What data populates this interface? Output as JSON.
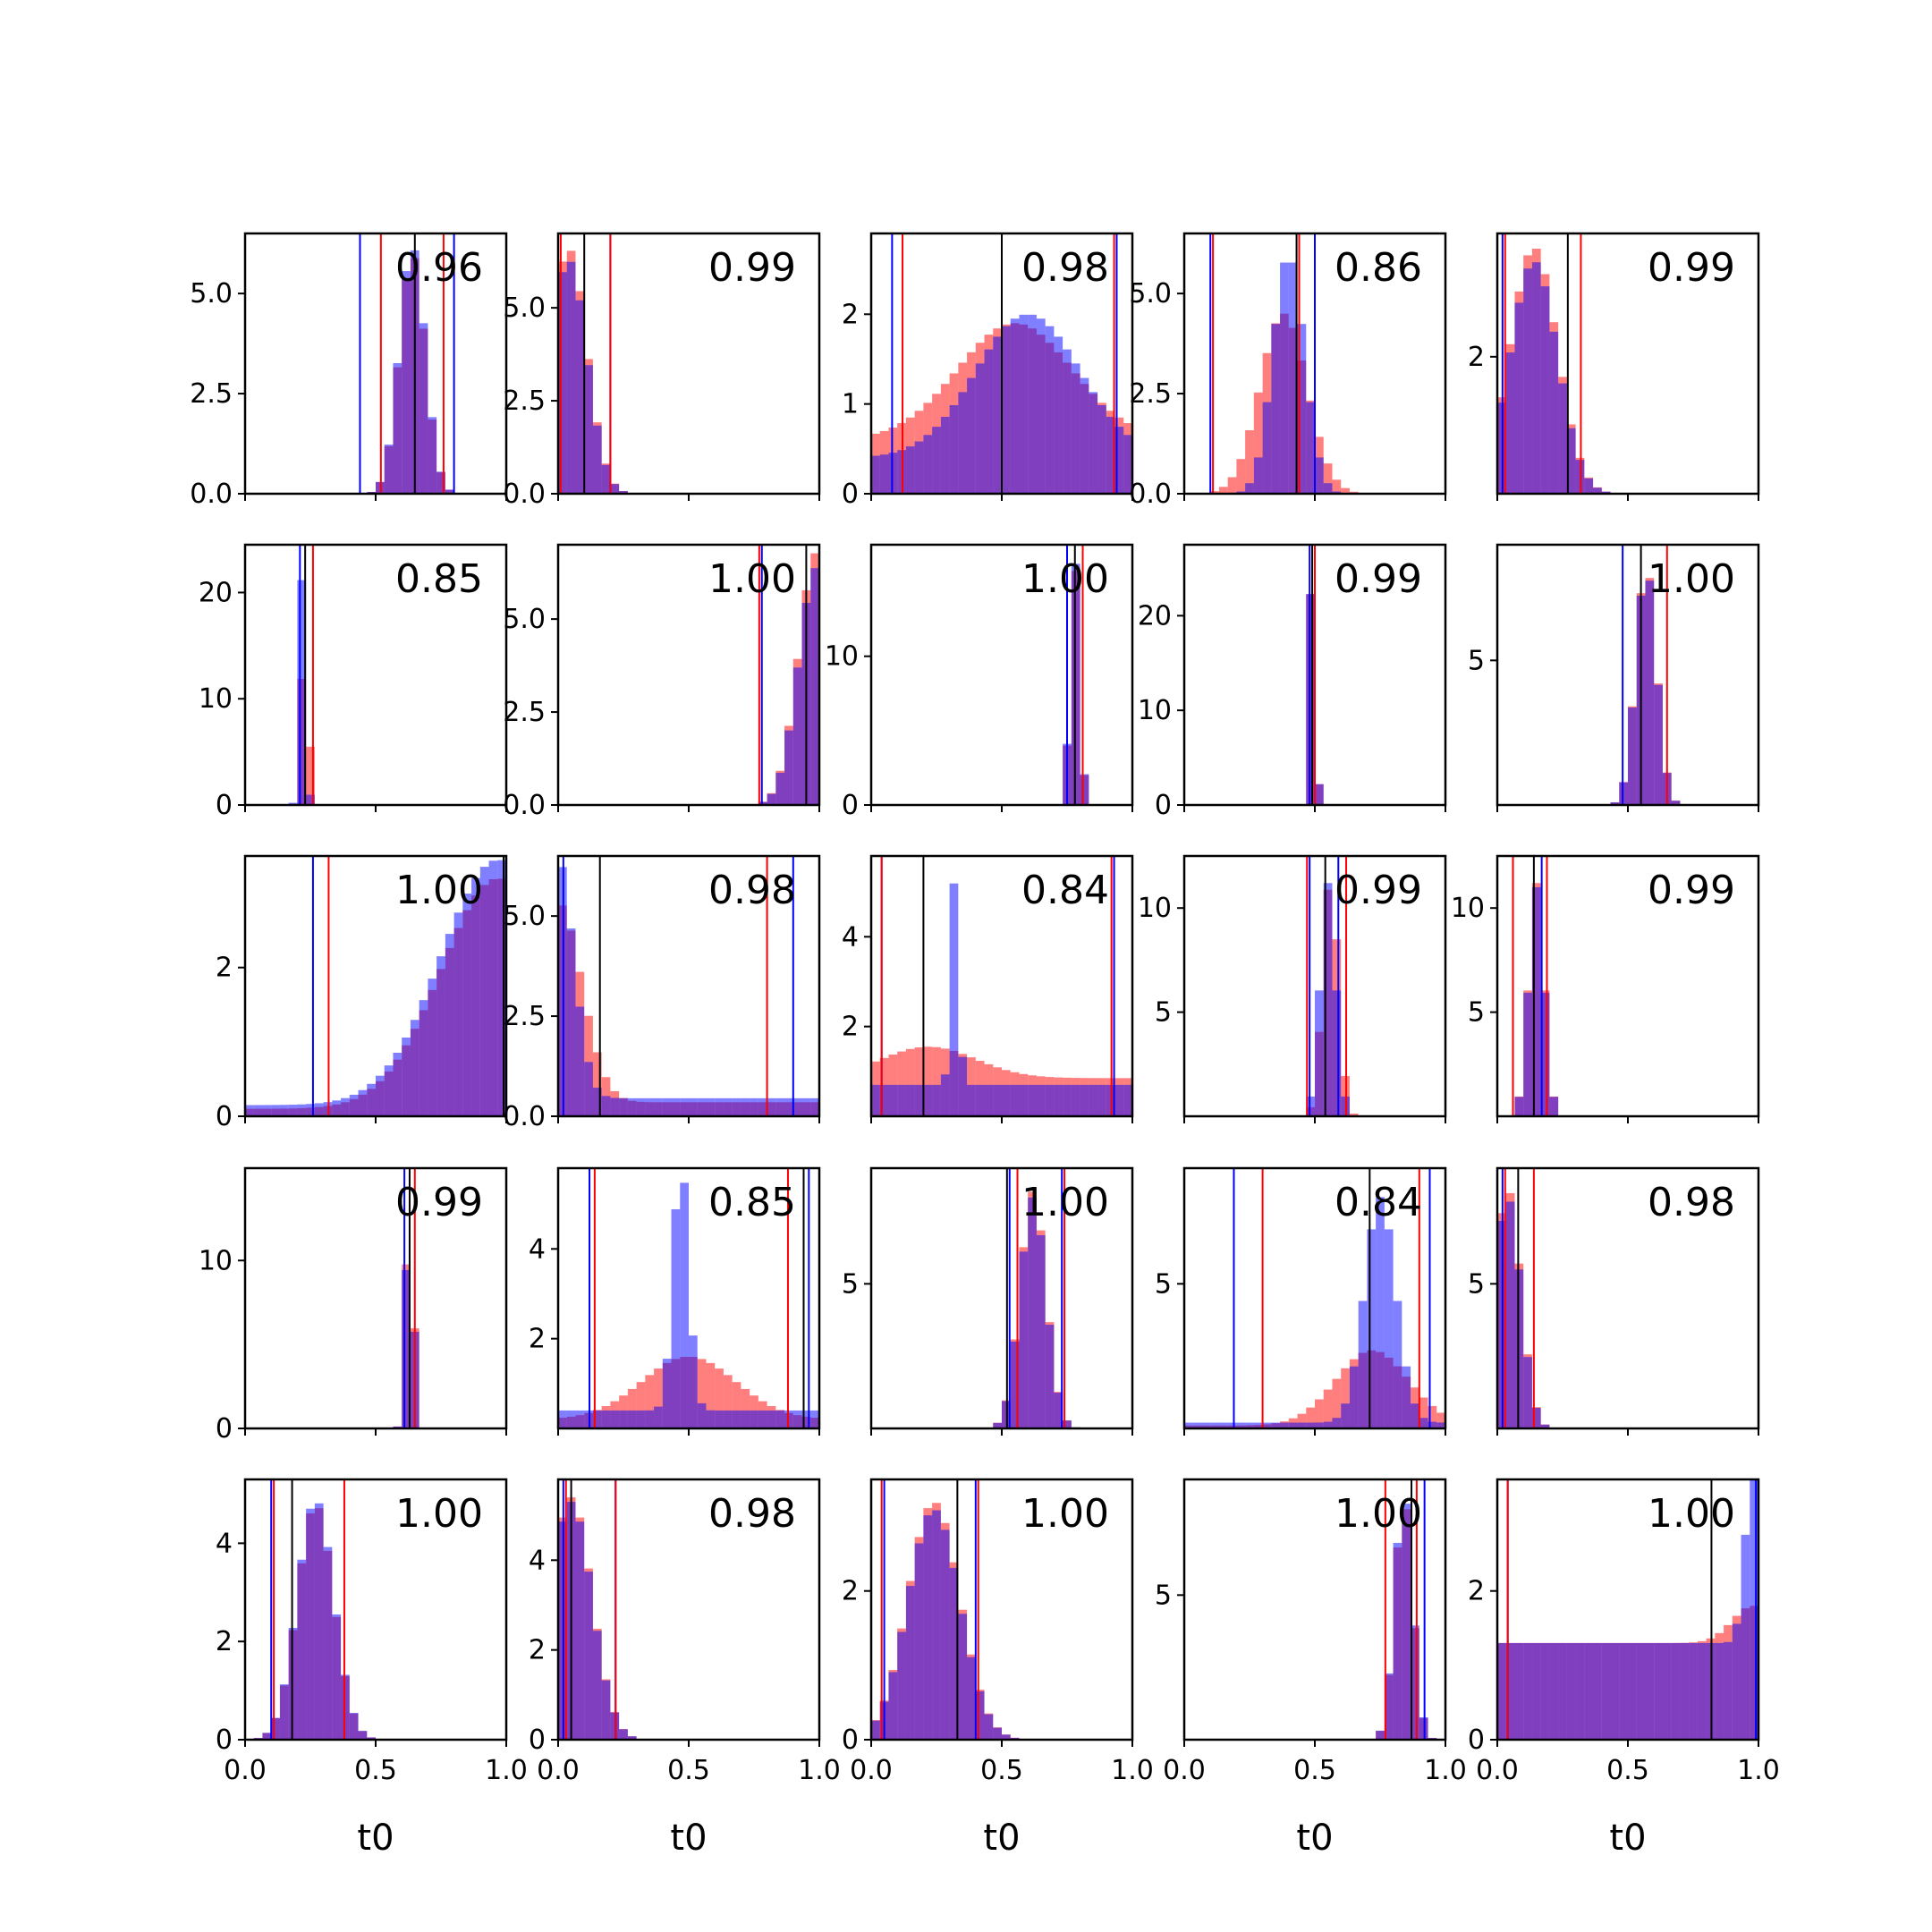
{
  "figure": {
    "xlabel": "t0"
  },
  "colors": {
    "red": "#ff0000",
    "blue": "#0000ff",
    "red_fill": "rgba(255,0,0,0.5)",
    "blue_fill": "rgba(0,0,255,0.5)",
    "black": "#000000"
  },
  "chart_data": [
    {
      "type": "bar",
      "score": "0.96",
      "x_range": [
        0,
        1
      ],
      "y_range": [
        0,
        6.5
      ],
      "y_ticks": [
        "0.0",
        "2.5",
        "5.0"
      ],
      "y_tick_values": [
        0,
        2.5,
        5.0
      ],
      "peaks": [
        {
          "mean": 0.64,
          "sd": 0.05,
          "height": 6.0,
          "color": "red"
        },
        {
          "mean": 0.64,
          "sd": 0.05,
          "height": 6.2,
          "color": "blue"
        }
      ],
      "vlines": {
        "blue": [
          0.44,
          0.8
        ],
        "red": [
          0.52,
          0.76
        ],
        "black": [
          0.65
        ]
      }
    },
    {
      "type": "bar",
      "score": "0.99",
      "x_range": [
        0,
        1
      ],
      "y_range": [
        0,
        7.0
      ],
      "y_ticks": [
        "0.0",
        "2.5",
        "5.0"
      ],
      "y_tick_values": [
        0,
        2.5,
        5.0
      ],
      "peaks": [
        {
          "mean": 0.04,
          "sd": 0.07,
          "height": 6.6,
          "color": "red"
        },
        {
          "mean": 0.04,
          "sd": 0.07,
          "height": 6.3,
          "color": "blue"
        }
      ],
      "vlines": {
        "blue": [
          0.2
        ],
        "red": [
          0.01,
          0.2
        ],
        "black": [
          0.1
        ]
      }
    },
    {
      "type": "bar",
      "score": "0.98",
      "x_range": [
        0,
        1
      ],
      "y_range": [
        0,
        2.9
      ],
      "y_ticks": [
        "0",
        "1",
        "2"
      ],
      "y_tick_values": [
        0,
        1,
        2
      ],
      "peaks": [
        {
          "mean": 0.55,
          "sd": 0.22,
          "height": 1.3,
          "color": "red",
          "base": 0.6
        },
        {
          "mean": 0.6,
          "sd": 0.2,
          "height": 1.6,
          "color": "blue",
          "base": 0.4
        }
      ],
      "vlines": {
        "blue": [
          0.08,
          0.94
        ],
        "red": [
          0.12,
          0.93
        ],
        "black": [
          0.5
        ]
      }
    },
    {
      "type": "bar",
      "score": "0.86",
      "x_range": [
        0,
        1
      ],
      "y_range": [
        0,
        6.5
      ],
      "y_ticks": [
        "0.0",
        "2.5",
        "5.0"
      ],
      "y_tick_values": [
        0,
        2.5,
        5.0
      ],
      "peaks": [
        {
          "mean": 0.38,
          "sd": 0.09,
          "height": 4.5,
          "color": "red"
        },
        {
          "mean": 0.4,
          "sd": 0.06,
          "height": 6.0,
          "color": "blue"
        }
      ],
      "vlines": {
        "blue": [
          0.1,
          0.5
        ],
        "red": [
          0.11,
          0.44
        ],
        "black": [
          0.43
        ]
      }
    },
    {
      "type": "bar",
      "score": "0.99",
      "x_range": [
        0,
        1
      ],
      "y_range": [
        0,
        3.8
      ],
      "y_ticks": [
        "2"
      ],
      "y_tick_values": [
        2
      ],
      "peaks": [
        {
          "mean": 0.14,
          "sd": 0.09,
          "height": 3.6,
          "color": "red"
        },
        {
          "mean": 0.14,
          "sd": 0.09,
          "height": 3.4,
          "color": "blue"
        }
      ],
      "vlines": {
        "blue": [
          0.02
        ],
        "red": [
          0.03,
          0.32
        ],
        "black": [
          0.27
        ]
      }
    },
    {
      "type": "bar",
      "score": "0.85",
      "x_range": [
        0,
        1
      ],
      "y_range": [
        0,
        24.5
      ],
      "y_ticks": [
        "0",
        "10",
        "20"
      ],
      "y_tick_values": [
        0,
        10,
        20
      ],
      "peaks": [
        {
          "mean": 0.23,
          "sd": 0.012,
          "height": 22,
          "color": "red"
        },
        {
          "mean": 0.22,
          "sd": 0.012,
          "height": 22,
          "color": "blue"
        }
      ],
      "vlines": {
        "blue": [
          0.21
        ],
        "red": [
          0.26
        ],
        "black": [
          0.23
        ]
      }
    },
    {
      "type": "bar",
      "score": "1.00",
      "x_range": [
        0,
        1
      ],
      "y_range": [
        0,
        7.0
      ],
      "y_ticks": [
        "0.0",
        "2.5",
        "5.0"
      ],
      "y_tick_values": [
        0,
        2.5,
        5.0
      ],
      "peaks": [
        {
          "mean": 0.99,
          "sd": 0.07,
          "height": 6.8,
          "color": "red"
        },
        {
          "mean": 0.99,
          "sd": 0.07,
          "height": 6.4,
          "color": "blue"
        }
      ],
      "vlines": {
        "blue": [
          0.78
        ],
        "red": [
          0.77
        ],
        "black": [
          0.95
        ]
      }
    },
    {
      "type": "bar",
      "score": "1.00",
      "x_range": [
        0,
        1
      ],
      "y_range": [
        0,
        17.5
      ],
      "y_ticks": [
        "0",
        "10"
      ],
      "y_tick_values": [
        0,
        10
      ],
      "peaks": [
        {
          "mean": 0.78,
          "sd": 0.018,
          "height": 16,
          "color": "red"
        },
        {
          "mean": 0.78,
          "sd": 0.018,
          "height": 16.5,
          "color": "blue"
        }
      ],
      "vlines": {
        "blue": [
          0.75
        ],
        "red": [
          0.81
        ],
        "black": [
          0.78
        ]
      }
    },
    {
      "type": "bar",
      "score": "0.99",
      "x_range": [
        0,
        1
      ],
      "y_range": [
        0,
        27.5
      ],
      "y_ticks": [
        "0",
        "10",
        "20"
      ],
      "y_tick_values": [
        0,
        10,
        20
      ],
      "peaks": [
        {
          "mean": 0.49,
          "sd": 0.012,
          "height": 26,
          "color": "red"
        },
        {
          "mean": 0.49,
          "sd": 0.012,
          "height": 26,
          "color": "blue"
        }
      ],
      "vlines": {
        "blue": [
          0.48
        ],
        "red": [
          0.5
        ],
        "black": [
          0.49
        ]
      }
    },
    {
      "type": "bar",
      "score": "1.00",
      "x_range": [
        0,
        1
      ],
      "y_range": [
        0,
        9.0
      ],
      "y_ticks": [
        "5"
      ],
      "y_tick_values": [
        5
      ],
      "peaks": [
        {
          "mean": 0.57,
          "sd": 0.04,
          "height": 8.3,
          "color": "red"
        },
        {
          "mean": 0.57,
          "sd": 0.04,
          "height": 8.2,
          "color": "blue"
        }
      ],
      "vlines": {
        "blue": [
          0.48
        ],
        "red": [
          0.65
        ],
        "black": [
          0.55
        ]
      }
    },
    {
      "type": "bar",
      "score": "1.00",
      "x_range": [
        0,
        1
      ],
      "y_range": [
        0,
        3.5
      ],
      "y_ticks": [
        "0",
        "2"
      ],
      "y_tick_values": [
        0,
        2
      ],
      "peaks": [
        {
          "mean": 0.97,
          "sd": 0.22,
          "height": 3.1,
          "color": "red",
          "base": 0.1
        },
        {
          "mean": 0.97,
          "sd": 0.22,
          "height": 3.3,
          "color": "blue",
          "base": 0.15
        }
      ],
      "vlines": {
        "blue": [
          0.26,
          0.99
        ],
        "red": [
          0.32
        ],
        "black": [
          0.99
        ]
      }
    },
    {
      "type": "bar",
      "score": "0.98",
      "x_range": [
        0,
        1
      ],
      "y_range": [
        0,
        6.5
      ],
      "y_ticks": [
        "0.0",
        "2.5",
        "5.0"
      ],
      "y_tick_values": [
        0,
        2.5,
        5.0
      ],
      "peaks": [
        {
          "mean": 0.0,
          "sd": 0.09,
          "height": 5.0,
          "color": "red",
          "base": 0.35
        },
        {
          "mean": 0.0,
          "sd": 0.06,
          "height": 6.0,
          "color": "blue",
          "base": 0.45
        }
      ],
      "vlines": {
        "blue": [
          0.02,
          0.9
        ],
        "red": [
          0.8
        ],
        "black": [
          0.16
        ]
      }
    },
    {
      "type": "bar",
      "score": "0.84",
      "x_range": [
        0,
        1
      ],
      "y_range": [
        0,
        5.8
      ],
      "y_ticks": [
        "2",
        "4"
      ],
      "y_tick_values": [
        2,
        4
      ],
      "peaks": [
        {
          "mean": 0.22,
          "sd": 0.18,
          "height": 0.7,
          "color": "red",
          "base": 0.85
        },
        {
          "mean": 0.32,
          "sd": 0.015,
          "height": 4.6,
          "color": "blue",
          "base": 0.7
        }
      ],
      "vlines": {
        "blue": [
          0.04,
          0.93
        ],
        "red": [
          0.04,
          0.92
        ],
        "black": [
          0.2
        ]
      }
    },
    {
      "type": "bar",
      "score": "0.99",
      "x_range": [
        0,
        1
      ],
      "y_range": [
        0,
        12.5
      ],
      "y_ticks": [
        "5",
        "10"
      ],
      "y_tick_values": [
        5,
        10
      ],
      "peaks": [
        {
          "mean": 0.56,
          "sd": 0.03,
          "height": 11.5,
          "color": "red"
        },
        {
          "mean": 0.55,
          "sd": 0.03,
          "height": 11.2,
          "color": "blue"
        }
      ],
      "vlines": {
        "blue": [
          0.48,
          0.59
        ],
        "red": [
          0.47,
          0.62
        ],
        "black": [
          0.54
        ]
      }
    },
    {
      "type": "bar",
      "score": "0.99",
      "x_range": [
        0,
        1
      ],
      "y_range": [
        0,
        12.5
      ],
      "y_ticks": [
        "5",
        "10"
      ],
      "y_tick_values": [
        5,
        10
      ],
      "peaks": [
        {
          "mean": 0.15,
          "sd": 0.03,
          "height": 11.2,
          "color": "red"
        },
        {
          "mean": 0.15,
          "sd": 0.03,
          "height": 11.0,
          "color": "blue"
        }
      ],
      "vlines": {
        "blue": [
          0.06,
          0.17
        ],
        "red": [
          0.06,
          0.19
        ],
        "black": [
          0.14
        ]
      }
    },
    {
      "type": "bar",
      "score": "0.99",
      "x_range": [
        0,
        1
      ],
      "y_range": [
        0,
        15.5
      ],
      "y_ticks": [
        "0",
        "10"
      ],
      "y_tick_values": [
        0,
        10
      ],
      "peaks": [
        {
          "mean": 0.63,
          "sd": 0.015,
          "height": 14.5,
          "color": "red"
        },
        {
          "mean": 0.63,
          "sd": 0.015,
          "height": 14.0,
          "color": "blue"
        }
      ],
      "vlines": {
        "blue": [
          0.61
        ],
        "red": [
          0.65
        ],
        "black": [
          0.63
        ]
      }
    },
    {
      "type": "bar",
      "score": "0.85",
      "x_range": [
        0,
        1
      ],
      "y_range": [
        0,
        5.8
      ],
      "y_ticks": [
        "2",
        "4"
      ],
      "y_tick_values": [
        2,
        4
      ],
      "peaks": [
        {
          "mean": 0.5,
          "sd": 0.18,
          "height": 1.4,
          "color": "red",
          "base": 0.2
        },
        {
          "mean": 0.47,
          "sd": 0.03,
          "height": 5.6,
          "color": "blue",
          "base": 0.4
        }
      ],
      "vlines": {
        "blue": [
          0.12,
          0.96
        ],
        "red": [
          0.14,
          0.88
        ],
        "black": [
          0.94
        ]
      }
    },
    {
      "type": "bar",
      "score": "1.00",
      "x_range": [
        0,
        1
      ],
      "y_range": [
        0,
        9.0
      ],
      "y_ticks": [
        "5"
      ],
      "y_tick_values": [
        5
      ],
      "peaks": [
        {
          "mean": 0.62,
          "sd": 0.05,
          "height": 8.2,
          "color": "red"
        },
        {
          "mean": 0.62,
          "sd": 0.05,
          "height": 8.0,
          "color": "blue"
        }
      ],
      "vlines": {
        "blue": [
          0.53,
          0.73
        ],
        "red": [
          0.56,
          0.74
        ],
        "black": [
          0.52
        ]
      }
    },
    {
      "type": "bar",
      "score": "0.84",
      "x_range": [
        0,
        1
      ],
      "y_range": [
        0,
        9.0
      ],
      "y_ticks": [
        "5"
      ],
      "y_tick_values": [
        5
      ],
      "peaks": [
        {
          "mean": 0.72,
          "sd": 0.14,
          "height": 2.6,
          "color": "red",
          "base": 0.1
        },
        {
          "mean": 0.75,
          "sd": 0.06,
          "height": 7.8,
          "color": "blue",
          "base": 0.2
        }
      ],
      "vlines": {
        "blue": [
          0.19,
          0.94
        ],
        "red": [
          0.3,
          0.9
        ],
        "black": [
          0.71
        ]
      }
    },
    {
      "type": "bar",
      "score": "0.98",
      "x_range": [
        0,
        1
      ],
      "y_range": [
        0,
        9.0
      ],
      "y_ticks": [
        "5"
      ],
      "y_tick_values": [
        5
      ],
      "peaks": [
        {
          "mean": 0.04,
          "sd": 0.05,
          "height": 8.3,
          "color": "red"
        },
        {
          "mean": 0.04,
          "sd": 0.05,
          "height": 8.0,
          "color": "blue"
        }
      ],
      "vlines": {
        "blue": [
          0.02
        ],
        "red": [
          0.03,
          0.14
        ],
        "black": [
          0.08
        ]
      }
    },
    {
      "type": "bar",
      "score": "1.00",
      "x_range": [
        0,
        1
      ],
      "y_range": [
        0,
        5.3
      ],
      "y_ticks": [
        "0",
        "2",
        "4"
      ],
      "y_tick_values": [
        0,
        2,
        4
      ],
      "peaks": [
        {
          "mean": 0.27,
          "sd": 0.07,
          "height": 4.8,
          "color": "red"
        },
        {
          "mean": 0.27,
          "sd": 0.07,
          "height": 4.9,
          "color": "blue"
        }
      ],
      "vlines": {
        "blue": [
          0.1
        ],
        "red": [
          0.11,
          0.38
        ],
        "black": [
          0.18
        ]
      }
    },
    {
      "type": "bar",
      "score": "0.98",
      "x_range": [
        0,
        1
      ],
      "y_range": [
        0,
        5.8
      ],
      "y_ticks": [
        "0",
        "2",
        "4"
      ],
      "y_tick_values": [
        0,
        2,
        4
      ],
      "peaks": [
        {
          "mean": 0.05,
          "sd": 0.08,
          "height": 5.4,
          "color": "red"
        },
        {
          "mean": 0.05,
          "sd": 0.08,
          "height": 5.3,
          "color": "blue"
        }
      ],
      "vlines": {
        "blue": [
          0.02,
          0.22
        ],
        "red": [
          0.03,
          0.22
        ],
        "black": [
          0.05
        ]
      }
    },
    {
      "type": "bar",
      "score": "1.00",
      "x_range": [
        0,
        1
      ],
      "y_range": [
        0,
        3.5
      ],
      "y_ticks": [
        "0",
        "2"
      ],
      "y_tick_values": [
        0,
        2
      ],
      "peaks": [
        {
          "mean": 0.24,
          "sd": 0.1,
          "height": 3.2,
          "color": "red"
        },
        {
          "mean": 0.24,
          "sd": 0.1,
          "height": 3.1,
          "color": "blue"
        }
      ],
      "vlines": {
        "blue": [
          0.05,
          0.4
        ],
        "red": [
          0.04,
          0.41
        ],
        "black": [
          0.33
        ]
      }
    },
    {
      "type": "bar",
      "score": "1.00",
      "x_range": [
        0,
        1
      ],
      "y_range": [
        0,
        9.0
      ],
      "y_ticks": [
        "5"
      ],
      "y_tick_values": [
        5
      ],
      "peaks": [
        {
          "mean": 0.84,
          "sd": 0.035,
          "height": 8.3,
          "color": "red"
        },
        {
          "mean": 0.84,
          "sd": 0.035,
          "height": 8.5,
          "color": "blue"
        }
      ],
      "vlines": {
        "blue": [
          0.92
        ],
        "red": [
          0.77,
          0.89
        ],
        "black": [
          0.87
        ]
      }
    },
    {
      "type": "bar",
      "score": "1.00",
      "x_range": [
        0,
        1
      ],
      "y_range": [
        0,
        3.5
      ],
      "y_ticks": [
        "0",
        "2"
      ],
      "y_tick_values": [
        0,
        2
      ],
      "peaks": [
        {
          "mean": 0.98,
          "sd": 0.03,
          "height": 2.4,
          "color": "blue",
          "base": 1.3
        },
        {
          "mean": 0.98,
          "sd": 0.08,
          "height": 0.5,
          "color": "red",
          "base": 1.3
        }
      ],
      "vlines": {
        "blue": [
          0.04,
          0.99
        ],
        "red": [
          0.04,
          1.0
        ],
        "black": [
          0.82
        ]
      }
    }
  ],
  "x_ticks": [
    "0.0",
    "0.5",
    "1.0"
  ]
}
